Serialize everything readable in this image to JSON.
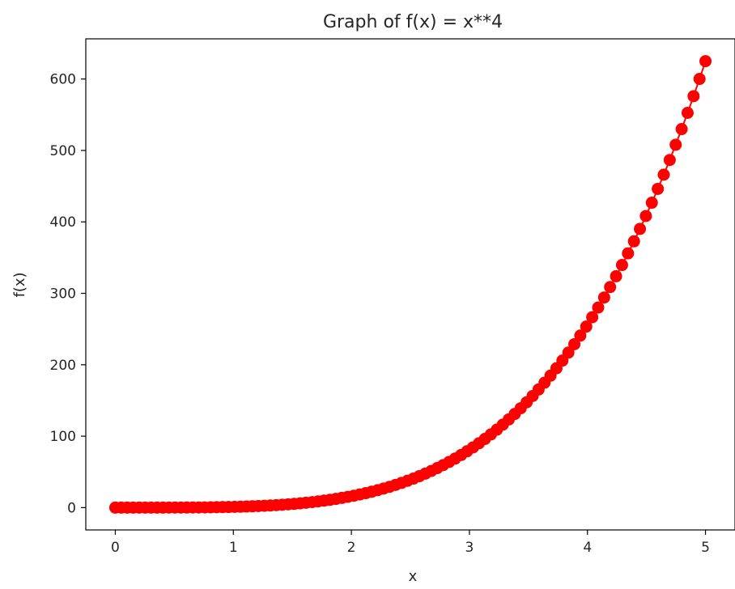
{
  "chart_data": {
    "type": "scatter",
    "title": "Graph of f(x) = x**4",
    "xlabel": "x",
    "ylabel": "f(x)",
    "xlim": [
      -0.25,
      5.25
    ],
    "ylim": [
      -31.25,
      656.25
    ],
    "xticks": [
      0,
      1,
      2,
      3,
      4,
      5
    ],
    "yticks": [
      0,
      100,
      200,
      300,
      400,
      500,
      600
    ],
    "grid": false,
    "legend": "none",
    "marker_color": "#ff0000",
    "line_color": "#ff0000",
    "series": [
      {
        "x_start": 0,
        "x_end": 5,
        "num_points": 100,
        "function": "x**4"
      }
    ]
  }
}
